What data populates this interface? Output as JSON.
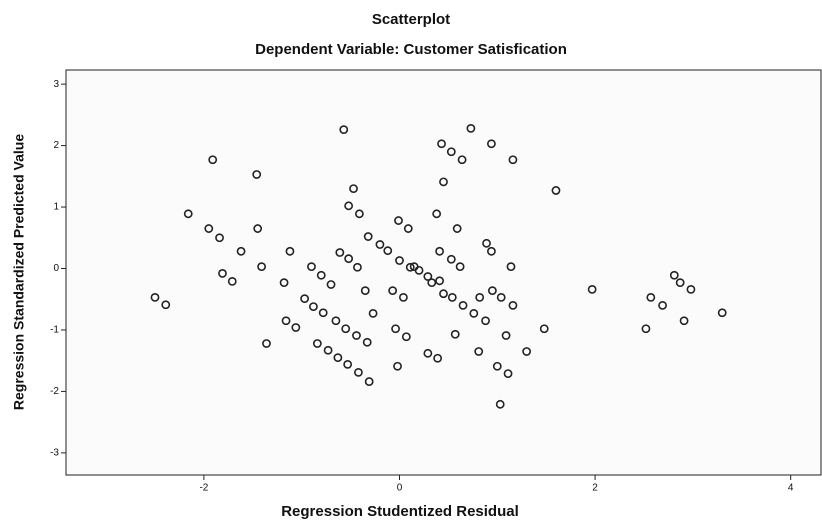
{
  "chart_data": {
    "type": "scatter",
    "title": "Scatterplot",
    "subtitle": "Dependent Variable: Customer Satisfication",
    "xlabel": "Regression Studentized Residual",
    "ylabel": "Regression Standardized Predicted Value",
    "color": "#222222",
    "xlim": [
      -3.41,
      4.31
    ],
    "ylim": [
      -3.36,
      3.23
    ],
    "xticks": [
      -2,
      0,
      2,
      4
    ],
    "yticks": [
      -3,
      -2,
      -1,
      0,
      1,
      2,
      3
    ],
    "x": [
      -2.5,
      -2.39,
      -2.16,
      -1.91,
      -1.95,
      -1.84,
      -1.62,
      -1.81,
      -1.71,
      -1.45,
      -1.41,
      -1.36,
      -1.46,
      -1.12,
      -1.18,
      -1.16,
      -1.06,
      -0.97,
      -0.9,
      -0.88,
      -0.8,
      -0.84,
      -0.78,
      -0.7,
      -0.73,
      -0.65,
      -0.63,
      -0.61,
      -0.55,
      -0.52,
      -0.53,
      -0.47,
      -0.44,
      -0.42,
      -0.43,
      -0.35,
      -0.33,
      -0.32,
      -0.31,
      -0.57,
      -0.52,
      -0.27,
      -0.2,
      -0.12,
      -0.41,
      -0.01,
      0.09,
      -0.07,
      0.0,
      -0.04,
      0.04,
      -0.02,
      0.07,
      0.11,
      0.15,
      0.2,
      0.29,
      0.33,
      0.41,
      0.45,
      0.41,
      0.29,
      0.39,
      0.38,
      0.45,
      0.43,
      0.53,
      0.64,
      0.59,
      0.53,
      0.62,
      0.54,
      0.65,
      0.57,
      0.73,
      0.76,
      0.82,
      0.88,
      0.81,
      0.89,
      0.94,
      0.94,
      0.95,
      1.04,
      1.0,
      1.03,
      1.09,
      1.11,
      1.14,
      1.16,
      1.16,
      1.3,
      1.48,
      1.6,
      1.97,
      2.52,
      2.57,
      2.69,
      2.81,
      2.87,
      2.91,
      2.98,
      3.3
    ],
    "values": [
      -0.47,
      -0.59,
      0.89,
      1.77,
      0.65,
      0.5,
      0.28,
      -0.08,
      -0.21,
      0.65,
      0.03,
      -1.22,
      1.53,
      0.28,
      -0.23,
      -0.85,
      -0.96,
      -0.49,
      0.03,
      -0.62,
      -0.11,
      -1.22,
      -0.72,
      -0.26,
      -1.33,
      -0.85,
      -1.45,
      0.26,
      -0.98,
      0.16,
      -1.56,
      1.3,
      -1.09,
      -1.69,
      0.02,
      -0.36,
      -1.2,
      0.52,
      -1.84,
      2.26,
      1.02,
      -0.73,
      0.39,
      0.29,
      0.89,
      0.78,
      0.65,
      -0.36,
      0.13,
      -0.98,
      -0.47,
      -1.59,
      -1.11,
      0.02,
      0.03,
      -0.03,
      -0.13,
      -0.23,
      -0.2,
      -0.41,
      0.28,
      -1.38,
      -1.46,
      0.89,
      1.41,
      2.03,
      1.9,
      1.77,
      0.65,
      0.15,
      0.03,
      -0.47,
      -0.6,
      -1.07,
      2.28,
      -0.73,
      -0.47,
      -0.85,
      -1.35,
      0.41,
      2.03,
      0.28,
      -0.36,
      -0.47,
      -1.59,
      -2.21,
      -1.09,
      -1.71,
      0.03,
      -0.6,
      1.77,
      -1.35,
      -0.98,
      1.27,
      -0.34,
      -0.98,
      -0.47,
      -0.6,
      -0.11,
      -0.23,
      -0.85,
      -0.34,
      -0.72
    ]
  }
}
